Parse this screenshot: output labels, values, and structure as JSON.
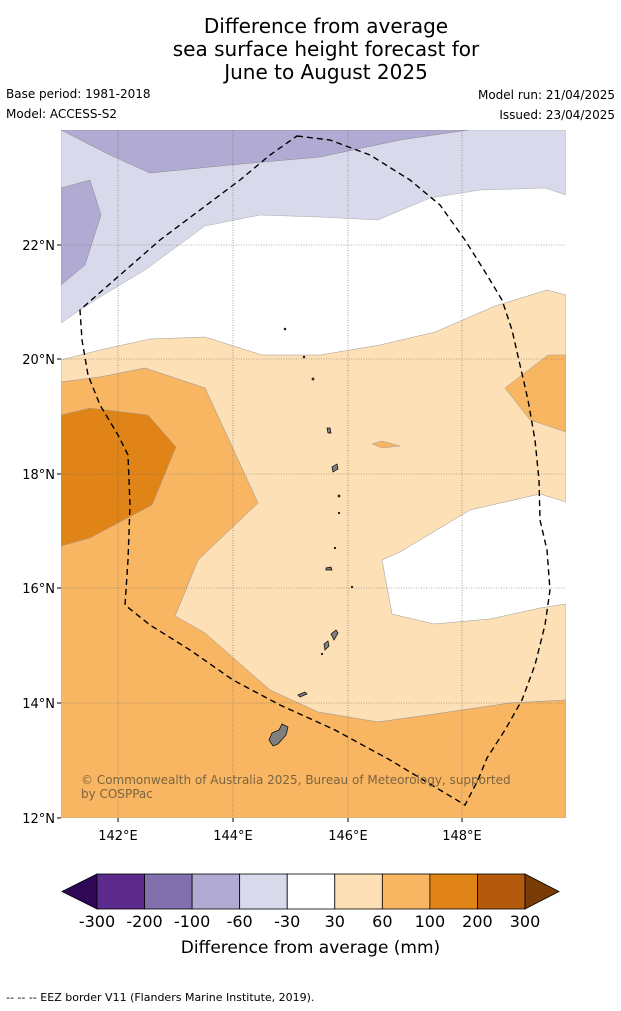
{
  "title_lines": [
    "Difference from average",
    "sea surface height forecast for",
    "June to August 2025"
  ],
  "meta": {
    "base_period": "Base period: 1981-2018",
    "model": "Model: ACCESS-S2",
    "model_run": "Model run: 21/04/2025",
    "issued": "Issued: 23/04/2025"
  },
  "axes": {
    "lat_labels": [
      "22°N",
      "20°N",
      "18°N",
      "16°N",
      "14°N",
      "12°N"
    ],
    "lon_labels": [
      "142°E",
      "144°E",
      "146°E",
      "148°E"
    ]
  },
  "attribution": "© Commonwealth of Australia 2025, Bureau of Meteorology, supported by COSPPac",
  "colorbar": {
    "ticks": [
      "-300",
      "-200",
      "-100",
      "-60",
      "-30",
      "30",
      "60",
      "100",
      "200",
      "300"
    ],
    "colors": [
      "#2e0854",
      "#5b2a8a",
      "#8170ad",
      "#b1abd3",
      "#d9d9ec",
      "#ffffff",
      "#fde0b5",
      "#f9b662",
      "#e08418",
      "#b35a0c",
      "#7a3c05"
    ],
    "label": "Difference from average (mm)"
  },
  "footnote": "--  --  -- EEZ border V11 (Flanders Marine Institute, 2019)."
}
